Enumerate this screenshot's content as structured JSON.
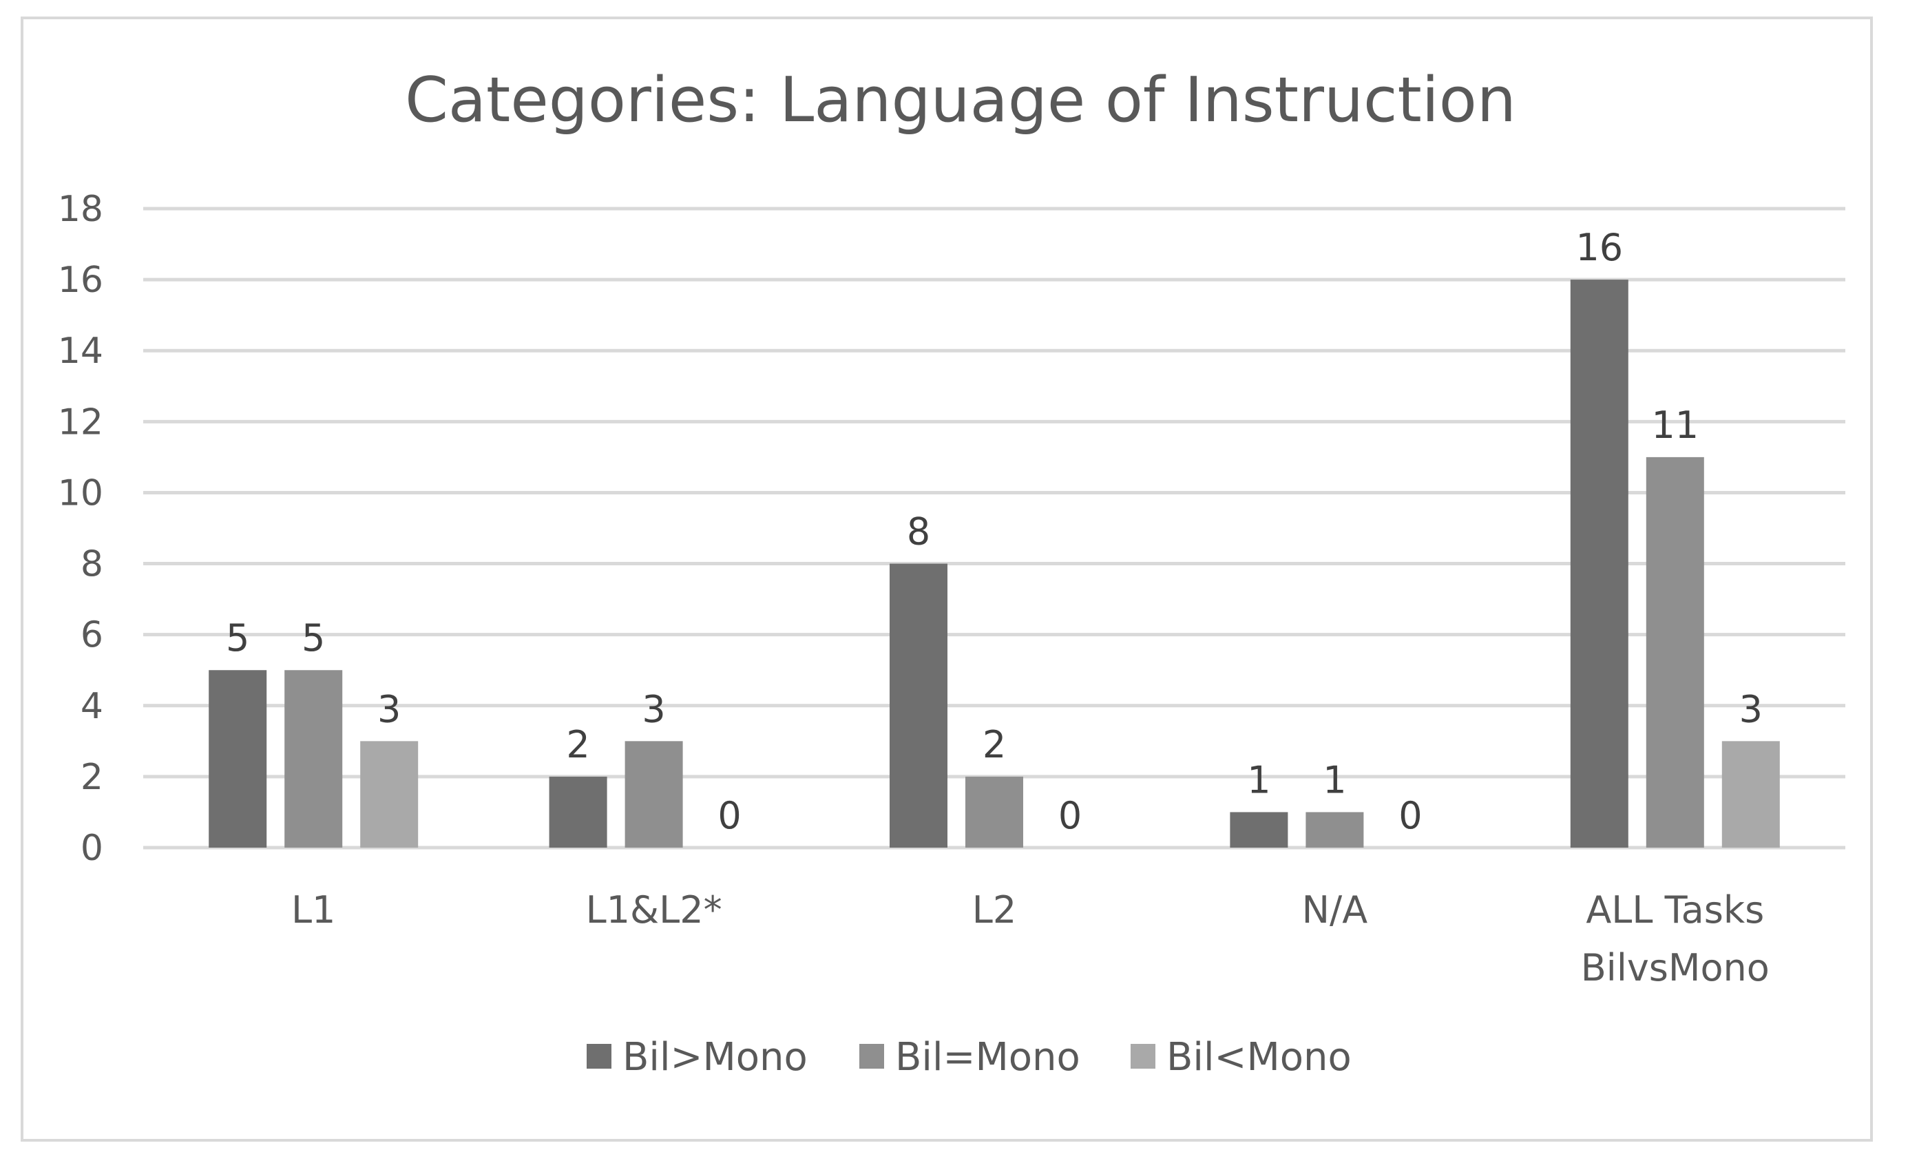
{
  "chart_data": {
    "type": "bar",
    "title": "Categories: Language of Instruction",
    "xlabel": "",
    "ylabel": "",
    "ylim": [
      0,
      18
    ],
    "yticks": [
      "0",
      "2",
      "4",
      "6",
      "8",
      "10",
      "12",
      "14",
      "16",
      "18"
    ],
    "grid": true,
    "legend_position": "bottom",
    "categories": [
      [
        "L1"
      ],
      [
        "L1&L2*"
      ],
      [
        "L2"
      ],
      [
        "N/A"
      ],
      [
        "ALL Tasks",
        "BilvsMono"
      ]
    ],
    "series": [
      {
        "name": "Bil>Mono",
        "color": "#6f6f6f",
        "values": [
          5,
          2,
          8,
          1,
          16
        ]
      },
      {
        "name": "Bil=Mono",
        "color": "#8f8f8f",
        "values": [
          5,
          3,
          2,
          1,
          11
        ]
      },
      {
        "name": "Bil<Mono",
        "color": "#a9a9a9",
        "values": [
          3,
          0,
          0,
          0,
          3
        ]
      }
    ]
  },
  "colors": {
    "gridline": "#d9d9d9",
    "text": "#595959",
    "value_label": "#404040",
    "frame": "#d9d9d9"
  }
}
